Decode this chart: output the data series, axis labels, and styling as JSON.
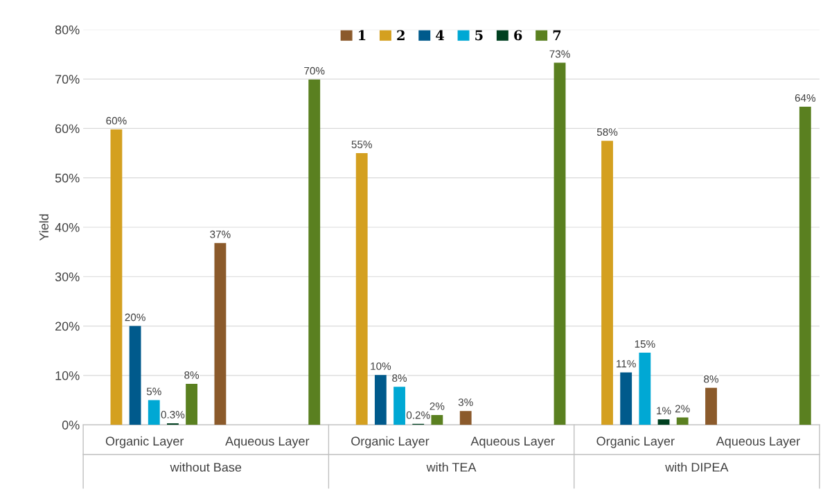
{
  "chart_data": {
    "type": "bar",
    "ylabel": "Yield",
    "categories": [
      "Organic Layer",
      "Aqueous Layer",
      "Organic Layer",
      "Aqueous Layer",
      "Organic Layer",
      "Aqueous Layer"
    ],
    "annotations": [
      "without Base",
      "with TEA",
      "with DIPEA"
    ],
    "series": [
      {
        "name": "1",
        "color": "#8b5a2b",
        "values": [
          null,
          36.8,
          null,
          2.8,
          null,
          7.5
        ],
        "value_labels": [
          null,
          "37%",
          null,
          "3%",
          null,
          "8%"
        ]
      },
      {
        "name": "2",
        "color": "#d4a020",
        "values": [
          59.8,
          null,
          55.0,
          null,
          57.5,
          null
        ],
        "value_labels": [
          "60%",
          null,
          "55%",
          null,
          "58%",
          null
        ]
      },
      {
        "name": "4",
        "color": "#005a8c",
        "values": [
          20.0,
          null,
          10.1,
          null,
          10.6,
          null
        ],
        "value_labels": [
          "20%",
          null,
          "10%",
          null,
          "11%",
          null
        ]
      },
      {
        "name": "5",
        "color": "#00a8d4",
        "values": [
          5.0,
          null,
          7.7,
          null,
          14.6,
          null
        ],
        "value_labels": [
          "5%",
          null,
          "8%",
          null,
          "15%",
          null
        ]
      },
      {
        "name": "6",
        "color": "#004020",
        "values": [
          0.3,
          null,
          0.2,
          null,
          1.1,
          null
        ],
        "value_labels": [
          "0.3%",
          null,
          "0.2%",
          null,
          "1%",
          null
        ]
      },
      {
        "name": "7",
        "color": "#5a8020",
        "values": [
          8.3,
          69.9,
          2.0,
          73.3,
          1.5,
          64.4
        ],
        "value_labels": [
          "8%",
          "70%",
          "2%",
          "73%",
          "2%",
          "64%"
        ]
      }
    ],
    "ylim": [
      0,
      80
    ],
    "yticks": [
      {
        "value": 0,
        "label": "0%"
      },
      {
        "value": 10,
        "label": "10%"
      },
      {
        "value": 20,
        "label": "20%"
      },
      {
        "value": 30,
        "label": "30%"
      },
      {
        "value": 40,
        "label": "40%"
      },
      {
        "value": 50,
        "label": "50%"
      },
      {
        "value": 60,
        "label": "60%"
      },
      {
        "value": 70,
        "label": "70%"
      },
      {
        "value": 80,
        "label": "80%"
      }
    ],
    "grid": "y",
    "legend": "top"
  }
}
